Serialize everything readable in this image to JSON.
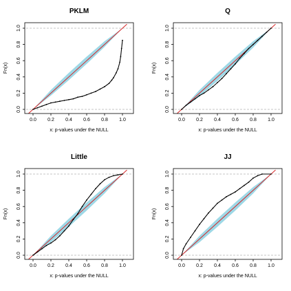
{
  "colors": {
    "band": "#9ed8e6",
    "diagonal": "#d62728",
    "observed": "#000000",
    "ref_lines": "#b3b3b3",
    "box": "#000000"
  },
  "chart_data": [
    {
      "type": "line",
      "title": "PKLM",
      "xlabel": "x: p-values under the NULL",
      "ylabel": "Fn(x)",
      "xlim": [
        0,
        1
      ],
      "ylim": [
        0,
        1
      ],
      "xticks": [
        "0.0",
        "0.2",
        "0.4",
        "0.6",
        "0.8",
        "1.0"
      ],
      "yticks": [
        "0.0",
        "0.2",
        "0.4",
        "0.6",
        "0.8",
        "1.0"
      ],
      "reference_lines": {
        "horizontal": [
          0,
          1
        ],
        "diagonal": true
      },
      "band": {
        "x": [
          0,
          0.2,
          0.4,
          0.6,
          0.8,
          1.0
        ],
        "lower": [
          0,
          0.17,
          0.36,
          0.56,
          0.77,
          1.0
        ],
        "upper": [
          0,
          0.24,
          0.45,
          0.65,
          0.84,
          1.0
        ]
      },
      "series": [
        {
          "x": [
            0,
            0.05,
            0.1,
            0.15,
            0.2,
            0.25,
            0.3,
            0.35,
            0.4,
            0.45,
            0.5,
            0.55,
            0.6,
            0.65,
            0.7,
            0.75,
            0.8,
            0.85,
            0.88,
            0.9,
            0.93,
            0.95,
            0.97,
            0.98,
            0.99,
            1.0
          ],
          "y": [
            0.0,
            0.02,
            0.04,
            0.06,
            0.08,
            0.09,
            0.1,
            0.11,
            0.12,
            0.13,
            0.15,
            0.16,
            0.18,
            0.2,
            0.22,
            0.25,
            0.28,
            0.32,
            0.36,
            0.39,
            0.45,
            0.5,
            0.58,
            0.65,
            0.75,
            0.85
          ]
        }
      ]
    },
    {
      "type": "line",
      "title": "Q",
      "xlabel": "x: p-values under the NULL",
      "ylabel": "Fn(x)",
      "xlim": [
        0,
        1
      ],
      "ylim": [
        0,
        1
      ],
      "xticks": [
        "0.0",
        "0.2",
        "0.4",
        "0.6",
        "0.8",
        "1.0"
      ],
      "yticks": [
        "0.0",
        "0.2",
        "0.4",
        "0.6",
        "0.8",
        "1.0"
      ],
      "reference_lines": {
        "horizontal": [
          0,
          1
        ],
        "diagonal": true
      },
      "band": {
        "x": [
          0,
          0.2,
          0.4,
          0.6,
          0.8,
          1.0
        ],
        "lower": [
          0,
          0.16,
          0.35,
          0.55,
          0.76,
          1.0
        ],
        "upper": [
          0,
          0.24,
          0.45,
          0.65,
          0.84,
          1.0
        ]
      },
      "series": [
        {
          "x": [
            0,
            0.05,
            0.1,
            0.15,
            0.2,
            0.25,
            0.3,
            0.35,
            0.4,
            0.45,
            0.5,
            0.55,
            0.6,
            0.65,
            0.7,
            0.75,
            0.8,
            0.85,
            0.9,
            0.95,
            1.0
          ],
          "y": [
            0.0,
            0.05,
            0.09,
            0.13,
            0.17,
            0.2,
            0.24,
            0.28,
            0.33,
            0.38,
            0.44,
            0.5,
            0.56,
            0.63,
            0.69,
            0.75,
            0.8,
            0.85,
            0.9,
            0.95,
            1.0
          ]
        }
      ]
    },
    {
      "type": "line",
      "title": "Little",
      "xlabel": "x: p-values under the NULL",
      "ylabel": "Fn(x)",
      "xlim": [
        0,
        1
      ],
      "ylim": [
        0,
        1
      ],
      "xticks": [
        "0.0",
        "0.2",
        "0.4",
        "0.6",
        "0.8",
        "1.0"
      ],
      "yticks": [
        "0.0",
        "0.2",
        "0.4",
        "0.6",
        "0.8",
        "1.0"
      ],
      "reference_lines": {
        "horizontal": [
          0,
          1
        ],
        "diagonal": true
      },
      "band": {
        "x": [
          0,
          0.2,
          0.4,
          0.6,
          0.8,
          1.0
        ],
        "lower": [
          0,
          0.16,
          0.35,
          0.55,
          0.76,
          1.0
        ],
        "upper": [
          0,
          0.24,
          0.45,
          0.65,
          0.84,
          1.0
        ]
      },
      "series": [
        {
          "x": [
            0,
            0.05,
            0.1,
            0.15,
            0.2,
            0.25,
            0.3,
            0.35,
            0.4,
            0.45,
            0.5,
            0.55,
            0.6,
            0.65,
            0.7,
            0.75,
            0.8,
            0.85,
            0.9,
            0.95,
            1.0
          ],
          "y": [
            0.0,
            0.04,
            0.08,
            0.12,
            0.15,
            0.19,
            0.24,
            0.3,
            0.36,
            0.44,
            0.51,
            0.6,
            0.68,
            0.75,
            0.82,
            0.88,
            0.93,
            0.96,
            0.98,
            0.99,
            1.0
          ]
        }
      ]
    },
    {
      "type": "line",
      "title": "JJ",
      "xlabel": "x: p-values under the NULL",
      "ylabel": "Fn(x)",
      "xlim": [
        0,
        1
      ],
      "ylim": [
        0,
        1
      ],
      "xticks": [
        "0.0",
        "0.2",
        "0.4",
        "0.6",
        "0.8",
        "1.0"
      ],
      "yticks": [
        "0.0",
        "0.2",
        "0.4",
        "0.6",
        "0.8",
        "1.0"
      ],
      "reference_lines": {
        "horizontal": [
          0,
          1
        ],
        "diagonal": true
      },
      "band": {
        "x": [
          0,
          0.2,
          0.4,
          0.6,
          0.8,
          1.0
        ],
        "lower": [
          0,
          0.16,
          0.35,
          0.55,
          0.76,
          1.0
        ],
        "upper": [
          0,
          0.24,
          0.45,
          0.65,
          0.84,
          1.0
        ]
      },
      "series": [
        {
          "x": [
            0,
            0.02,
            0.05,
            0.1,
            0.15,
            0.2,
            0.25,
            0.3,
            0.35,
            0.4,
            0.45,
            0.5,
            0.55,
            0.6,
            0.65,
            0.7,
            0.75,
            0.8,
            0.85,
            0.9,
            1.0
          ],
          "y": [
            0.0,
            0.08,
            0.14,
            0.22,
            0.3,
            0.38,
            0.45,
            0.52,
            0.58,
            0.64,
            0.68,
            0.72,
            0.75,
            0.78,
            0.82,
            0.86,
            0.9,
            0.95,
            0.98,
            1.0,
            1.0
          ]
        }
      ]
    }
  ]
}
